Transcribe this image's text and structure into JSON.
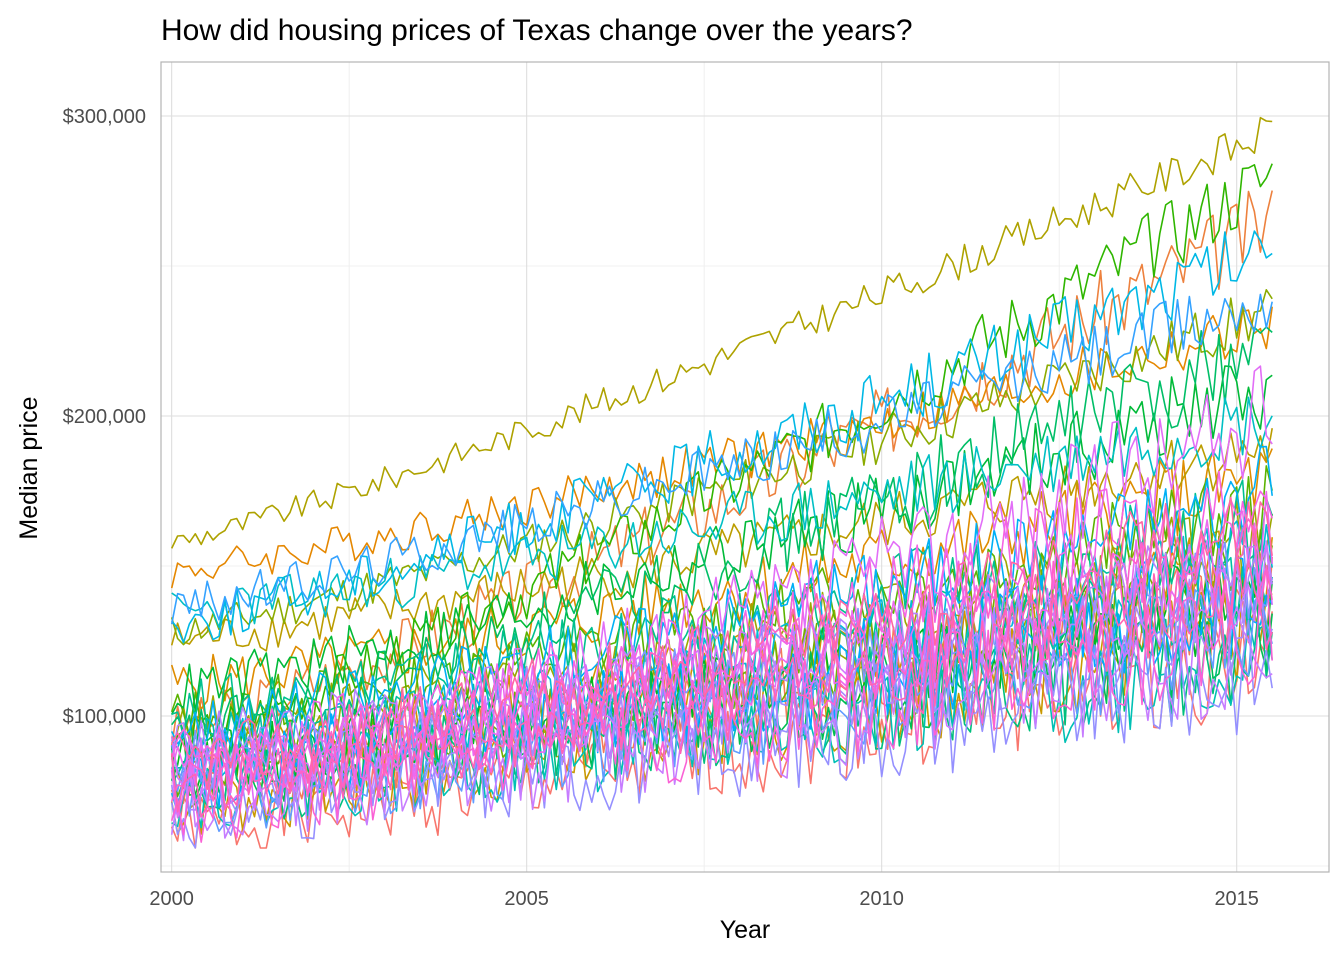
{
  "chart_data": {
    "type": "line",
    "title": "How did housing prices of Texas change over the years?",
    "xlabel": "Year",
    "ylabel": "Median price",
    "xlim": [
      1999.85,
      2016.3
    ],
    "ylim": [
      48000,
      318000
    ],
    "x_ticks": [
      {
        "value": 2000,
        "label": "2000"
      },
      {
        "value": 2005,
        "label": "2005"
      },
      {
        "value": 2010,
        "label": "2010"
      },
      {
        "value": 2015,
        "label": "2015"
      }
    ],
    "y_ticks": [
      {
        "value": 100000,
        "label": "$100,000"
      },
      {
        "value": 200000,
        "label": "$200,000"
      },
      {
        "value": 300000,
        "label": "$300,000"
      }
    ],
    "grid": true,
    "legend": "none",
    "x_range": [
      2000.0,
      2015.5
    ],
    "series": [
      {
        "color": "#F8766D",
        "start": 62000,
        "end": 120000,
        "noise": 12000
      },
      {
        "color": "#F37B59",
        "start": 78000,
        "end": 140000,
        "noise": 11000
      },
      {
        "color": "#ED813E",
        "start": 95000,
        "end": 265000,
        "noise": 9000
      },
      {
        "color": "#E58700",
        "start": 148000,
        "end": 230000,
        "noise": 6000
      },
      {
        "color": "#DE8C00",
        "start": 110000,
        "end": 180000,
        "noise": 9000
      },
      {
        "color": "#D39200",
        "start": 85000,
        "end": 150000,
        "noise": 10000
      },
      {
        "color": "#C99800",
        "start": 70000,
        "end": 130000,
        "noise": 12000
      },
      {
        "color": "#BB9D00",
        "start": 125000,
        "end": 190000,
        "noise": 7000
      },
      {
        "color": "#AEA200",
        "start": 158000,
        "end": 295000,
        "noise": 4000
      },
      {
        "color": "#9DA700",
        "start": 95000,
        "end": 160000,
        "noise": 10000
      },
      {
        "color": "#8BAB00",
        "start": 128000,
        "end": 235000,
        "noise": 6000
      },
      {
        "color": "#74AE00",
        "start": 82000,
        "end": 150000,
        "noise": 11000
      },
      {
        "color": "#5BB300",
        "start": 100000,
        "end": 170000,
        "noise": 9000
      },
      {
        "color": "#2FB600",
        "start": 90000,
        "end": 280000,
        "noise": 8000
      },
      {
        "color": "#00B81F",
        "start": 84000,
        "end": 140000,
        "noise": 11000
      },
      {
        "color": "#00BA38",
        "start": 108000,
        "end": 210000,
        "noise": 9000
      },
      {
        "color": "#00BC52",
        "start": 80000,
        "end": 130000,
        "noise": 12000
      },
      {
        "color": "#00BE67",
        "start": 92000,
        "end": 225000,
        "noise": 10000
      },
      {
        "color": "#00BF7D",
        "start": 76000,
        "end": 125000,
        "noise": 13000
      },
      {
        "color": "#00C08E",
        "start": 102000,
        "end": 165000,
        "noise": 10000
      },
      {
        "color": "#00C1A3",
        "start": 88000,
        "end": 145000,
        "noise": 11000
      },
      {
        "color": "#00C0B4",
        "start": 74000,
        "end": 118000,
        "noise": 12000
      },
      {
        "color": "#00BFC4",
        "start": 134000,
        "end": 200000,
        "noise": 8000
      },
      {
        "color": "#00BCD6",
        "start": 86000,
        "end": 150000,
        "noise": 11000
      },
      {
        "color": "#00B8E5",
        "start": 130000,
        "end": 255000,
        "noise": 8000
      },
      {
        "color": "#00B0F6",
        "start": 96000,
        "end": 175000,
        "noise": 10000
      },
      {
        "color": "#00A9FF",
        "start": 80000,
        "end": 140000,
        "noise": 13000
      },
      {
        "color": "#35A2FF",
        "start": 136000,
        "end": 240000,
        "noise": 7000
      },
      {
        "color": "#619CFF",
        "start": 72000,
        "end": 128000,
        "noise": 12000
      },
      {
        "color": "#7997FF",
        "start": 84000,
        "end": 150000,
        "noise": 11000
      },
      {
        "color": "#9590FF",
        "start": 68000,
        "end": 115000,
        "noise": 13000
      },
      {
        "color": "#A58AFF",
        "start": 78000,
        "end": 135000,
        "noise": 12000
      },
      {
        "color": "#B983FF",
        "start": 90000,
        "end": 150000,
        "noise": 11000
      },
      {
        "color": "#C77CFF",
        "start": 70000,
        "end": 122000,
        "noise": 13000
      },
      {
        "color": "#D575FE",
        "start": 82000,
        "end": 145000,
        "noise": 12000
      },
      {
        "color": "#E26EF7",
        "start": 74000,
        "end": 200000,
        "noise": 13000
      },
      {
        "color": "#EC69EF",
        "start": 78000,
        "end": 160000,
        "noise": 12000
      },
      {
        "color": "#F564E3",
        "start": 86000,
        "end": 175000,
        "noise": 11000
      },
      {
        "color": "#FA62D5",
        "start": 70000,
        "end": 130000,
        "noise": 13000
      },
      {
        "color": "#FF61C9",
        "start": 80000,
        "end": 150000,
        "noise": 12000
      },
      {
        "color": "#FF63B6",
        "start": 76000,
        "end": 140000,
        "noise": 12000
      },
      {
        "color": "#FF67A4",
        "start": 84000,
        "end": 165000,
        "noise": 11000
      }
    ]
  }
}
